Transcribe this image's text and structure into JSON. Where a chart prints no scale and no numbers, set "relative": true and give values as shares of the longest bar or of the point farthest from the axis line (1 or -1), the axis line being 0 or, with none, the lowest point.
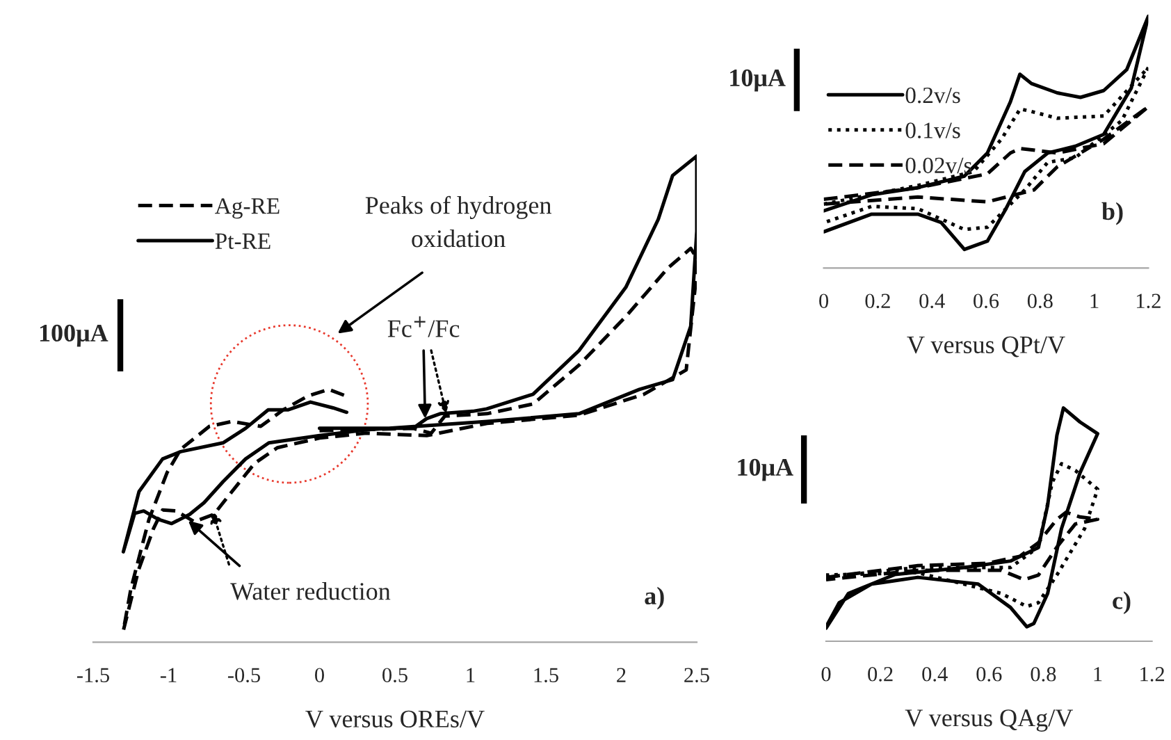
{
  "chart_data": [
    {
      "type": "line",
      "relative": true,
      "xlabel": "V versus OREs/V",
      "xlim": [
        -1.5,
        2.5
      ],
      "xticks": [
        -1.5,
        -1,
        -0.5,
        0,
        0.5,
        1,
        1.5,
        2,
        2.5
      ],
      "legend": "top left",
      "annotations": [
        "Peaks of hydrogen\noxidation",
        {
          "text": "Fc$^{+}$/Fc",
          "x": 0.7,
          "y": 0.46
        },
        {
          "text": "Water reduction",
          "x": -0.87,
          "y": 0.25
        },
        "a)",
        "100μA"
      ],
      "series": [
        {
          "name": "Ag-RE",
          "color": "#000000",
          "line_style": "dashed",
          "x": [
            0,
            0.62,
            0.74,
            0.83,
            1.11,
            1.415,
            1.72,
            2.03,
            2.31,
            2.46,
            2.5,
            2.5,
            2.43,
            2.15,
            1.72,
            1.11,
            0.71,
            0.31,
            0,
            -0.28,
            -0.43,
            -0.58,
            -0.7,
            -0.83,
            -0.95,
            -1.04,
            -1.1,
            -1.2,
            -1.3,
            -1.25,
            -1.13,
            -1.01,
            -0.92,
            -0.73,
            -0.58,
            -0.39,
            -0.24,
            -0.08,
            0.06,
            0.18
          ],
          "values": [
            0.435,
            0.44,
            0.43,
            0.465,
            0.47,
            0.49,
            0.57,
            0.67,
            0.77,
            0.81,
            0.79,
            0.76,
            0.56,
            0.51,
            0.467,
            0.45,
            0.425,
            0.43,
            0.42,
            0.4,
            0.368,
            0.31,
            0.263,
            0.248,
            0.27,
            0.272,
            0.234,
            0.148,
            0.024,
            0.11,
            0.253,
            0.349,
            0.397,
            0.444,
            0.454,
            0.444,
            0.478,
            0.506,
            0.52,
            0.506
          ]
        },
        {
          "name": "Pt-RE",
          "color": "#000000",
          "line_style": "solid",
          "x": [
            0,
            0.62,
            0.71,
            0.8,
            1.016,
            1.108,
            1.415,
            1.72,
            2.03,
            2.245,
            2.34,
            2.5,
            2.5,
            2.46,
            2.34,
            2.12,
            1.72,
            1.11,
            0.31,
            0,
            -0.336,
            -0.49,
            -0.64,
            -0.765,
            -0.86,
            -0.98,
            -1.07,
            -1.165,
            -1.225,
            -1.3,
            -1.196,
            -1.04,
            -0.92,
            -0.64,
            -0.49,
            -0.34,
            -0.21,
            -0.06,
            0.09,
            0.18
          ],
          "values": [
            0.44,
            0.44,
            0.46,
            0.47,
            0.475,
            0.48,
            0.51,
            0.6,
            0.73,
            0.87,
            0.96,
            1.0,
            0.845,
            0.65,
            0.54,
            0.52,
            0.47,
            0.454,
            0.437,
            0.425,
            0.41,
            0.377,
            0.33,
            0.287,
            0.263,
            0.244,
            0.253,
            0.27,
            0.265,
            0.186,
            0.31,
            0.377,
            0.392,
            0.41,
            0.44,
            0.478,
            0.478,
            0.494,
            0.482,
            0.473
          ]
        }
      ]
    },
    {
      "type": "line",
      "relative": true,
      "xlabel": "V versus QPt/V",
      "xlim": [
        0,
        1.2
      ],
      "xticks": [
        0,
        0.2,
        0.4,
        0.6,
        0.8,
        1,
        1.2
      ],
      "legend": "top left",
      "annotations": [
        "b)",
        "10μA"
      ],
      "series": [
        {
          "name": "0.2v/s",
          "color": "#000000",
          "line_style": "solid",
          "x": [
            0,
            0.177,
            0.346,
            0.52,
            0.605,
            0.69,
            0.725,
            0.768,
            0.863,
            0.949,
            1.035,
            1.12,
            1.2,
            1.137,
            1.035,
            0.93,
            0.828,
            0.743,
            0.674,
            0.605,
            0.52,
            0.434,
            0.348,
            0.177,
            0
          ],
          "values": [
            0.227,
            0.291,
            0.319,
            0.365,
            0.457,
            0.66,
            0.77,
            0.733,
            0.696,
            0.678,
            0.705,
            0.788,
            1.0,
            0.715,
            0.531,
            0.484,
            0.457,
            0.383,
            0.236,
            0.107,
            0.074,
            0.181,
            0.214,
            0.214,
            0.144
          ]
        },
        {
          "name": "0.1v/s",
          "color": "#000000",
          "line_style": "dotted",
          "x": [
            0,
            0.348,
            0.554,
            0.657,
            0.726,
            0.768,
            0.863,
            1.035,
            1.2,
            1.102,
            0.93,
            0.828,
            0.743,
            0.674,
            0.605,
            0.52,
            0.348,
            0.177,
            0
          ],
          "values": [
            0.254,
            0.328,
            0.383,
            0.512,
            0.632,
            0.622,
            0.595,
            0.604,
            0.797,
            0.586,
            0.438,
            0.42,
            0.31,
            0.236,
            0.162,
            0.153,
            0.236,
            0.245,
            0.18
          ]
        },
        {
          "name": "0.02v/s",
          "color": "#000000",
          "line_style": "dashed",
          "x": [
            0,
            0.348,
            0.605,
            0.69,
            0.726,
            0.863,
            1.035,
            1.2,
            1.035,
            0.863,
            0.777,
            0.605,
            0.348,
            0
          ],
          "values": [
            0.273,
            0.319,
            0.374,
            0.457,
            0.475,
            0.457,
            0.494,
            0.641,
            0.512,
            0.402,
            0.31,
            0.263,
            0.282,
            0.254
          ]
        }
      ]
    },
    {
      "type": "line",
      "relative": true,
      "xlabel": "V versus QAg/V",
      "xlim": [
        0,
        1.2
      ],
      "xticks": [
        0,
        0.2,
        0.4,
        0.6,
        0.8,
        1,
        1.2
      ],
      "annotations": [
        "c)",
        "10μA"
      ],
      "series": [
        {
          "color": "#000000",
          "line_style": "solid",
          "x": [
            0,
            0.082,
            0.253,
            0.509,
            0.679,
            0.782,
            0.816,
            0.85,
            0.874,
            0.935,
            1.0,
            0.935,
            0.867,
            0.816,
            0.765,
            0.739,
            0.679,
            0.56,
            0.338,
            0.167,
            0.048,
            0
          ],
          "values": [
            0.056,
            0.205,
            0.286,
            0.316,
            0.344,
            0.402,
            0.584,
            0.883,
            1.0,
            0.94,
            0.89,
            0.722,
            0.483,
            0.205,
            0.076,
            0.062,
            0.145,
            0.245,
            0.274,
            0.245,
            0.165,
            0.062
          ]
        },
        {
          "color": "#000000",
          "line_style": "dotted",
          "x": [
            0,
            0.338,
            0.679,
            0.782,
            0.833,
            0.867,
            0.918,
            1.0,
            0.952,
            0.85,
            0.782,
            0.739,
            0.645,
            0.338,
            0
          ],
          "values": [
            0.276,
            0.316,
            0.316,
            0.404,
            0.682,
            0.761,
            0.732,
            0.652,
            0.483,
            0.284,
            0.165,
            0.149,
            0.205,
            0.294,
            0.284
          ]
        },
        {
          "color": "#000000",
          "line_style": "dashed",
          "x": [
            0,
            0.338,
            0.594,
            0.713,
            0.782,
            0.85,
            0.884,
            0.935,
            1.0,
            0.918,
            0.85,
            0.782,
            0.73,
            0.645,
            0.338,
            0
          ],
          "values": [
            0.274,
            0.324,
            0.334,
            0.364,
            0.423,
            0.523,
            0.553,
            0.533,
            0.523,
            0.503,
            0.404,
            0.284,
            0.264,
            0.304,
            0.304,
            0.264
          ]
        }
      ]
    }
  ]
}
